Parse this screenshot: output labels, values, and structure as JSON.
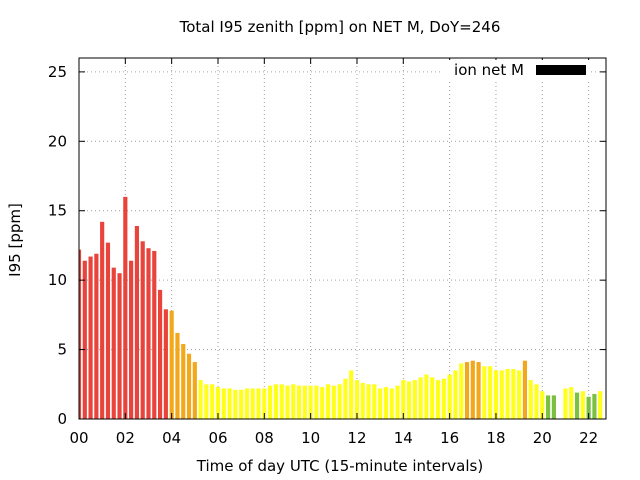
{
  "chart_data": {
    "type": "bar",
    "title": "Total I95 zenith [ppm] on NET M, DoY=246",
    "xlabel": "Time of day UTC (15-minute intervals)",
    "ylabel": "I95 [ppm]",
    "xlim": [
      0,
      22.75
    ],
    "ylim": [
      0,
      26
    ],
    "xticks": [
      "00",
      "02",
      "04",
      "06",
      "08",
      "10",
      "12",
      "14",
      "16",
      "18",
      "20",
      "22"
    ],
    "xtick_values": [
      0,
      2,
      4,
      6,
      8,
      10,
      12,
      14,
      16,
      18,
      20,
      22
    ],
    "yticks": [
      "0",
      "5",
      "10",
      "15",
      "20",
      "25"
    ],
    "ytick_values": [
      0,
      5,
      10,
      15,
      20,
      25
    ],
    "grid": true,
    "legend": {
      "position": "top-right",
      "label": "ion net M",
      "color": "#000000"
    },
    "bar_colors": {
      "red": "#e8443c",
      "orange": "#f2a81a",
      "yellow": "#ffff1a",
      "green": "#7ac142"
    },
    "bar_interval_hours": 0.25,
    "bar_width_hours": 0.18,
    "bars": [
      {
        "t": 0.0,
        "v": 12.2,
        "c": "red"
      },
      {
        "t": 0.25,
        "v": 11.4,
        "c": "red"
      },
      {
        "t": 0.5,
        "v": 11.7,
        "c": "red"
      },
      {
        "t": 0.75,
        "v": 11.9,
        "c": "red"
      },
      {
        "t": 1.0,
        "v": 14.2,
        "c": "red"
      },
      {
        "t": 1.25,
        "v": 12.7,
        "c": "red"
      },
      {
        "t": 1.5,
        "v": 10.9,
        "c": "red"
      },
      {
        "t": 1.75,
        "v": 10.5,
        "c": "red"
      },
      {
        "t": 2.0,
        "v": 16.0,
        "c": "red"
      },
      {
        "t": 2.25,
        "v": 11.4,
        "c": "red"
      },
      {
        "t": 2.5,
        "v": 13.9,
        "c": "red"
      },
      {
        "t": 2.75,
        "v": 12.8,
        "c": "red"
      },
      {
        "t": 3.0,
        "v": 12.3,
        "c": "red"
      },
      {
        "t": 3.25,
        "v": 12.1,
        "c": "red"
      },
      {
        "t": 3.5,
        "v": 9.3,
        "c": "red"
      },
      {
        "t": 3.75,
        "v": 7.9,
        "c": "red"
      },
      {
        "t": 4.0,
        "v": 7.8,
        "c": "orange"
      },
      {
        "t": 4.25,
        "v": 6.2,
        "c": "orange"
      },
      {
        "t": 4.5,
        "v": 5.4,
        "c": "orange"
      },
      {
        "t": 4.75,
        "v": 4.7,
        "c": "orange"
      },
      {
        "t": 5.0,
        "v": 4.1,
        "c": "orange"
      },
      {
        "t": 5.25,
        "v": 2.8,
        "c": "yellow"
      },
      {
        "t": 5.5,
        "v": 2.5,
        "c": "yellow"
      },
      {
        "t": 5.75,
        "v": 2.5,
        "c": "yellow"
      },
      {
        "t": 6.0,
        "v": 2.3,
        "c": "yellow"
      },
      {
        "t": 6.25,
        "v": 2.2,
        "c": "yellow"
      },
      {
        "t": 6.5,
        "v": 2.2,
        "c": "yellow"
      },
      {
        "t": 6.75,
        "v": 2.1,
        "c": "yellow"
      },
      {
        "t": 7.0,
        "v": 2.1,
        "c": "yellow"
      },
      {
        "t": 7.25,
        "v": 2.2,
        "c": "yellow"
      },
      {
        "t": 7.5,
        "v": 2.2,
        "c": "yellow"
      },
      {
        "t": 7.75,
        "v": 2.2,
        "c": "yellow"
      },
      {
        "t": 8.0,
        "v": 2.2,
        "c": "yellow"
      },
      {
        "t": 8.25,
        "v": 2.4,
        "c": "yellow"
      },
      {
        "t": 8.5,
        "v": 2.5,
        "c": "yellow"
      },
      {
        "t": 8.75,
        "v": 2.5,
        "c": "yellow"
      },
      {
        "t": 9.0,
        "v": 2.4,
        "c": "yellow"
      },
      {
        "t": 9.25,
        "v": 2.5,
        "c": "yellow"
      },
      {
        "t": 9.5,
        "v": 2.4,
        "c": "yellow"
      },
      {
        "t": 9.75,
        "v": 2.4,
        "c": "yellow"
      },
      {
        "t": 10.0,
        "v": 2.4,
        "c": "yellow"
      },
      {
        "t": 10.25,
        "v": 2.4,
        "c": "yellow"
      },
      {
        "t": 10.5,
        "v": 2.3,
        "c": "yellow"
      },
      {
        "t": 10.75,
        "v": 2.5,
        "c": "yellow"
      },
      {
        "t": 11.0,
        "v": 2.4,
        "c": "yellow"
      },
      {
        "t": 11.25,
        "v": 2.5,
        "c": "yellow"
      },
      {
        "t": 11.5,
        "v": 2.9,
        "c": "yellow"
      },
      {
        "t": 11.75,
        "v": 3.5,
        "c": "yellow"
      },
      {
        "t": 12.0,
        "v": 2.8,
        "c": "yellow"
      },
      {
        "t": 12.25,
        "v": 2.6,
        "c": "yellow"
      },
      {
        "t": 12.5,
        "v": 2.5,
        "c": "yellow"
      },
      {
        "t": 12.75,
        "v": 2.5,
        "c": "yellow"
      },
      {
        "t": 13.0,
        "v": 2.2,
        "c": "yellow"
      },
      {
        "t": 13.25,
        "v": 2.3,
        "c": "yellow"
      },
      {
        "t": 13.5,
        "v": 2.2,
        "c": "yellow"
      },
      {
        "t": 13.75,
        "v": 2.4,
        "c": "yellow"
      },
      {
        "t": 14.0,
        "v": 2.8,
        "c": "yellow"
      },
      {
        "t": 14.25,
        "v": 2.7,
        "c": "yellow"
      },
      {
        "t": 14.5,
        "v": 2.8,
        "c": "yellow"
      },
      {
        "t": 14.75,
        "v": 3.0,
        "c": "yellow"
      },
      {
        "t": 15.0,
        "v": 3.2,
        "c": "yellow"
      },
      {
        "t": 15.25,
        "v": 3.0,
        "c": "yellow"
      },
      {
        "t": 15.5,
        "v": 2.8,
        "c": "yellow"
      },
      {
        "t": 15.75,
        "v": 2.9,
        "c": "yellow"
      },
      {
        "t": 16.0,
        "v": 3.2,
        "c": "yellow"
      },
      {
        "t": 16.25,
        "v": 3.5,
        "c": "yellow"
      },
      {
        "t": 16.5,
        "v": 4.0,
        "c": "yellow"
      },
      {
        "t": 16.75,
        "v": 4.1,
        "c": "orange"
      },
      {
        "t": 17.0,
        "v": 4.2,
        "c": "orange"
      },
      {
        "t": 17.25,
        "v": 4.1,
        "c": "orange"
      },
      {
        "t": 17.5,
        "v": 3.8,
        "c": "yellow"
      },
      {
        "t": 17.75,
        "v": 3.8,
        "c": "yellow"
      },
      {
        "t": 18.0,
        "v": 3.5,
        "c": "yellow"
      },
      {
        "t": 18.25,
        "v": 3.5,
        "c": "yellow"
      },
      {
        "t": 18.5,
        "v": 3.6,
        "c": "yellow"
      },
      {
        "t": 18.75,
        "v": 3.6,
        "c": "yellow"
      },
      {
        "t": 19.0,
        "v": 3.5,
        "c": "yellow"
      },
      {
        "t": 19.25,
        "v": 4.2,
        "c": "orange"
      },
      {
        "t": 19.5,
        "v": 2.8,
        "c": "yellow"
      },
      {
        "t": 19.75,
        "v": 2.5,
        "c": "yellow"
      },
      {
        "t": 20.0,
        "v": 2.0,
        "c": "yellow"
      },
      {
        "t": 20.25,
        "v": 1.7,
        "c": "green"
      },
      {
        "t": 20.5,
        "v": 1.7,
        "c": "green"
      },
      {
        "t": 21.0,
        "v": 2.2,
        "c": "yellow"
      },
      {
        "t": 21.25,
        "v": 2.3,
        "c": "yellow"
      },
      {
        "t": 21.5,
        "v": 1.9,
        "c": "green"
      },
      {
        "t": 21.75,
        "v": 2.0,
        "c": "yellow"
      },
      {
        "t": 22.0,
        "v": 1.6,
        "c": "green"
      },
      {
        "t": 22.25,
        "v": 1.8,
        "c": "green"
      },
      {
        "t": 22.5,
        "v": 2.0,
        "c": "yellow"
      }
    ]
  }
}
